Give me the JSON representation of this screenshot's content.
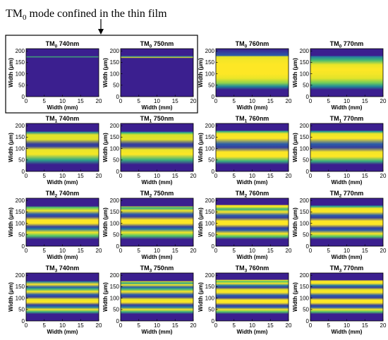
{
  "headline": {
    "prefix": "TM",
    "sub": "0",
    "rest": " mode confined in the thin film"
  },
  "chart_data": {
    "type": "heatmap",
    "xlabel": "Width (mm)",
    "ylabel": "Width (μm)",
    "xlim": [
      0,
      20
    ],
    "ylim": [
      0,
      210
    ],
    "xticks": [
      "0",
      "5",
      "10",
      "15",
      "20"
    ],
    "yticks": [
      "0",
      "50",
      "100",
      "150",
      "200"
    ],
    "colormap": [
      "#3b1f8f",
      "#2c5ca8",
      "#1f9c93",
      "#4ec36b",
      "#d7e22b",
      "#fde725"
    ],
    "highlight_note": "box around TM0 740nm and TM0 750nm",
    "panels": [
      {
        "mode": "TM",
        "order": "0",
        "wavelength": "740nm",
        "profile": [
          [
            0,
            0
          ],
          [
            170,
            0
          ],
          [
            174,
            0.55
          ],
          [
            178,
            0
          ],
          [
            210,
            0
          ]
        ]
      },
      {
        "mode": "TM",
        "order": "0",
        "wavelength": "750nm",
        "profile": [
          [
            0,
            0
          ],
          [
            168,
            0
          ],
          [
            172,
            0.85
          ],
          [
            176,
            0.3
          ],
          [
            180,
            0
          ],
          [
            210,
            0
          ]
        ]
      },
      {
        "mode": "TM",
        "order": "0",
        "wavelength": "760nm",
        "profile": [
          [
            0,
            0
          ],
          [
            30,
            0
          ],
          [
            45,
            0.35
          ],
          [
            60,
            0.7
          ],
          [
            80,
            0.9
          ],
          [
            100,
            1
          ],
          [
            140,
            1
          ],
          [
            160,
            0.95
          ],
          [
            175,
            0.85
          ],
          [
            180,
            0.2
          ],
          [
            210,
            0
          ]
        ]
      },
      {
        "mode": "TM",
        "order": "0",
        "wavelength": "770nm",
        "profile": [
          [
            0,
            0
          ],
          [
            30,
            0
          ],
          [
            45,
            0.35
          ],
          [
            60,
            0.65
          ],
          [
            80,
            0.85
          ],
          [
            100,
            0.95
          ],
          [
            120,
            1
          ],
          [
            140,
            0.9
          ],
          [
            160,
            0.55
          ],
          [
            175,
            0.3
          ],
          [
            180,
            0
          ],
          [
            210,
            0
          ]
        ]
      },
      {
        "mode": "TM",
        "order": "1",
        "wavelength": "740nm",
        "profile": [
          [
            0,
            0
          ],
          [
            30,
            0
          ],
          [
            50,
            0.45
          ],
          [
            75,
            0.95
          ],
          [
            95,
            0.9
          ],
          [
            110,
            0.1
          ],
          [
            120,
            0.1
          ],
          [
            140,
            0.85
          ],
          [
            160,
            0.85
          ],
          [
            172,
            0.35
          ],
          [
            176,
            0
          ],
          [
            210,
            0
          ]
        ]
      },
      {
        "mode": "TM",
        "order": "1",
        "wavelength": "750nm",
        "profile": [
          [
            0,
            0
          ],
          [
            30,
            0
          ],
          [
            50,
            0.5
          ],
          [
            75,
            1
          ],
          [
            95,
            0.9
          ],
          [
            110,
            0.1
          ],
          [
            120,
            0.1
          ],
          [
            140,
            0.85
          ],
          [
            160,
            0.8
          ],
          [
            168,
            0.6
          ],
          [
            172,
            0.3
          ],
          [
            176,
            0
          ],
          [
            210,
            0
          ]
        ]
      },
      {
        "mode": "TM",
        "order": "1",
        "wavelength": "760nm",
        "profile": [
          [
            0,
            0
          ],
          [
            30,
            0
          ],
          [
            45,
            0.5
          ],
          [
            65,
            1
          ],
          [
            85,
            1
          ],
          [
            105,
            0.1
          ],
          [
            120,
            0.2
          ],
          [
            145,
            1
          ],
          [
            165,
            0.95
          ],
          [
            175,
            0.5
          ],
          [
            180,
            0
          ],
          [
            210,
            0
          ]
        ]
      },
      {
        "mode": "TM",
        "order": "1",
        "wavelength": "770nm",
        "profile": [
          [
            0,
            0
          ],
          [
            30,
            0
          ],
          [
            45,
            0.5
          ],
          [
            65,
            1
          ],
          [
            85,
            0.95
          ],
          [
            105,
            0.1
          ],
          [
            120,
            0.2
          ],
          [
            145,
            1
          ],
          [
            165,
            0.9
          ],
          [
            175,
            0.4
          ],
          [
            180,
            0
          ],
          [
            210,
            0
          ]
        ]
      },
      {
        "mode": "TM",
        "order": "2",
        "wavelength": "740nm",
        "profile": [
          [
            0,
            0
          ],
          [
            30,
            0
          ],
          [
            45,
            0.6
          ],
          [
            60,
            0.95
          ],
          [
            75,
            0.3
          ],
          [
            85,
            0.1
          ],
          [
            100,
            1
          ],
          [
            115,
            1
          ],
          [
            130,
            0.1
          ],
          [
            140,
            0.2
          ],
          [
            155,
            0.95
          ],
          [
            170,
            0.6
          ],
          [
            176,
            0
          ],
          [
            210,
            0
          ]
        ]
      },
      {
        "mode": "TM",
        "order": "2",
        "wavelength": "750nm",
        "profile": [
          [
            0,
            0
          ],
          [
            30,
            0
          ],
          [
            45,
            0.6
          ],
          [
            60,
            0.95
          ],
          [
            75,
            0.3
          ],
          [
            85,
            0.1
          ],
          [
            100,
            1
          ],
          [
            115,
            1
          ],
          [
            130,
            0.1
          ],
          [
            140,
            0.2
          ],
          [
            155,
            0.95
          ],
          [
            168,
            0.45
          ],
          [
            172,
            0.75
          ],
          [
            176,
            0
          ],
          [
            210,
            0
          ]
        ]
      },
      {
        "mode": "TM",
        "order": "2",
        "wavelength": "760nm",
        "profile": [
          [
            0,
            0
          ],
          [
            30,
            0
          ],
          [
            42,
            0.6
          ],
          [
            55,
            1
          ],
          [
            70,
            0.2
          ],
          [
            80,
            0.1
          ],
          [
            95,
            1
          ],
          [
            110,
            1
          ],
          [
            125,
            0.1
          ],
          [
            135,
            0.2
          ],
          [
            150,
            1
          ],
          [
            162,
            0.5
          ],
          [
            172,
            0.9
          ],
          [
            178,
            1
          ],
          [
            182,
            0
          ],
          [
            210,
            0
          ]
        ]
      },
      {
        "mode": "TM",
        "order": "2",
        "wavelength": "770nm",
        "profile": [
          [
            0,
            0
          ],
          [
            30,
            0
          ],
          [
            42,
            0.6
          ],
          [
            55,
            1
          ],
          [
            70,
            0.2
          ],
          [
            80,
            0.1
          ],
          [
            95,
            1
          ],
          [
            110,
            1
          ],
          [
            125,
            0.1
          ],
          [
            135,
            0.2
          ],
          [
            150,
            1
          ],
          [
            165,
            0.95
          ],
          [
            175,
            0.4
          ],
          [
            180,
            0
          ],
          [
            210,
            0
          ]
        ]
      },
      {
        "mode": "TM",
        "order": "3",
        "wavelength": "740nm",
        "profile": [
          [
            0,
            0
          ],
          [
            30,
            0
          ],
          [
            40,
            0.5
          ],
          [
            50,
            1
          ],
          [
            60,
            0.3
          ],
          [
            70,
            0.1
          ],
          [
            82,
            1
          ],
          [
            95,
            0.9
          ],
          [
            105,
            0.1
          ],
          [
            115,
            0.2
          ],
          [
            128,
            1
          ],
          [
            140,
            0.5
          ],
          [
            148,
            0.2
          ],
          [
            160,
            1
          ],
          [
            172,
            0.3
          ],
          [
            176,
            0
          ],
          [
            210,
            0
          ]
        ]
      },
      {
        "mode": "TM",
        "order": "3",
        "wavelength": "750nm",
        "profile": [
          [
            0,
            0
          ],
          [
            30,
            0
          ],
          [
            40,
            0.5
          ],
          [
            50,
            1
          ],
          [
            60,
            0.3
          ],
          [
            70,
            0.1
          ],
          [
            82,
            1
          ],
          [
            95,
            0.9
          ],
          [
            105,
            0.1
          ],
          [
            115,
            0.2
          ],
          [
            128,
            1
          ],
          [
            140,
            0.5
          ],
          [
            148,
            0.2
          ],
          [
            158,
            0.95
          ],
          [
            166,
            0.4
          ],
          [
            172,
            0.8
          ],
          [
            176,
            0
          ],
          [
            210,
            0
          ]
        ]
      },
      {
        "mode": "TM",
        "order": "3",
        "wavelength": "760nm",
        "profile": [
          [
            0,
            0
          ],
          [
            30,
            0
          ],
          [
            40,
            0.6
          ],
          [
            50,
            1
          ],
          [
            60,
            0.2
          ],
          [
            68,
            0.1
          ],
          [
            80,
            1
          ],
          [
            92,
            1
          ],
          [
            102,
            0.1
          ],
          [
            112,
            0.2
          ],
          [
            125,
            1
          ],
          [
            137,
            0.9
          ],
          [
            147,
            0.1
          ],
          [
            155,
            0.3
          ],
          [
            165,
            1
          ],
          [
            172,
            0.6
          ],
          [
            178,
            0.9
          ],
          [
            182,
            0
          ],
          [
            210,
            0
          ]
        ]
      },
      {
        "mode": "TM",
        "order": "3",
        "wavelength": "770nm",
        "profile": [
          [
            0,
            0
          ],
          [
            30,
            0
          ],
          [
            40,
            0.6
          ],
          [
            50,
            1
          ],
          [
            60,
            0.2
          ],
          [
            68,
            0.1
          ],
          [
            80,
            1
          ],
          [
            92,
            1
          ],
          [
            102,
            0.1
          ],
          [
            112,
            0.2
          ],
          [
            125,
            1
          ],
          [
            137,
            0.9
          ],
          [
            147,
            0.1
          ],
          [
            155,
            0.3
          ],
          [
            165,
            1
          ],
          [
            175,
            0.95
          ],
          [
            180,
            0
          ],
          [
            210,
            0
          ]
        ]
      }
    ]
  }
}
